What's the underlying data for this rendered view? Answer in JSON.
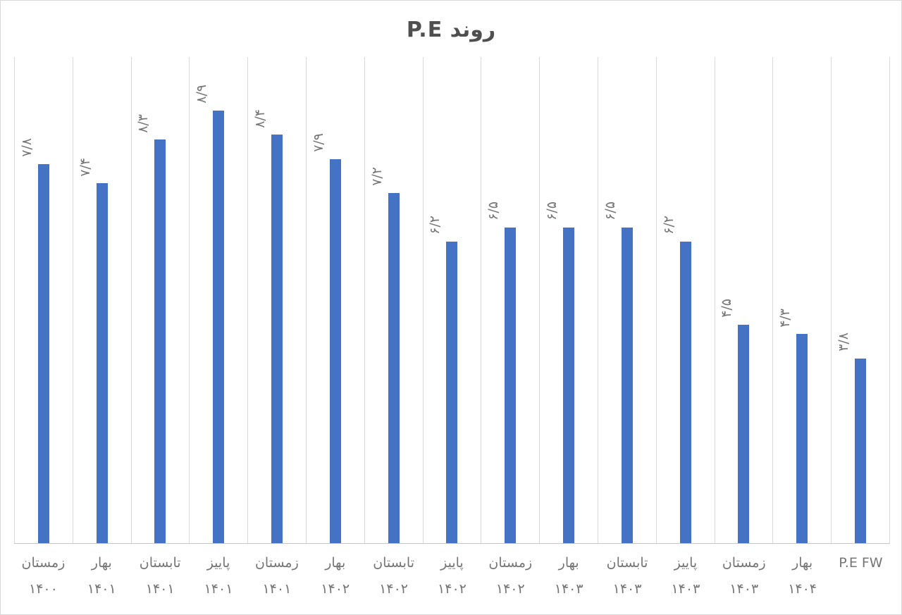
{
  "colors": {
    "bar": "#4472C4",
    "gridline": "#d9d9d9",
    "axis_line": "#c6c6c6",
    "data_label": "#767676",
    "axis_label": "#757575",
    "title": "#4f4f4f"
  },
  "chart_data": {
    "type": "bar",
    "title": "روند P.E",
    "xlabel": "",
    "ylabel": "",
    "ylim": [
      0,
      10
    ],
    "grid": "vertical-only",
    "legend": "none",
    "bar_color": "#4472C4",
    "categories": [
      "زمستان ۱۴۰۰",
      "بهار ۱۴۰۱",
      "تابستان ۱۴۰۱",
      "پاییز ۱۴۰۱",
      "زمستان ۱۴۰۱",
      "بهار ۱۴۰۲",
      "تابستان ۱۴۰۲",
      "پاییز ۱۴۰۲",
      "زمستان ۱۴۰۲",
      "بهار ۱۴۰۳",
      "تابستان ۱۴۰۳",
      "پاییز ۱۴۰۳",
      "زمستان ۱۴۰۳",
      "بهار ۱۴۰۴",
      "P.E FW"
    ],
    "category_lines": [
      {
        "line1": "زمستان",
        "line2": "۱۴۰۰"
      },
      {
        "line1": "بهار",
        "line2": "۱۴۰۱"
      },
      {
        "line1": "تابستان",
        "line2": "۱۴۰۱"
      },
      {
        "line1": "پاییز",
        "line2": "۱۴۰۱"
      },
      {
        "line1": "زمستان",
        "line2": "۱۴۰۱"
      },
      {
        "line1": "بهار",
        "line2": "۱۴۰۲"
      },
      {
        "line1": "تابستان",
        "line2": "۱۴۰۲"
      },
      {
        "line1": "پاییز",
        "line2": "۱۴۰۲"
      },
      {
        "line1": "زمستان",
        "line2": "۱۴۰۲"
      },
      {
        "line1": "بهار",
        "line2": "۱۴۰۳"
      },
      {
        "line1": "تابستان",
        "line2": "۱۴۰۳"
      },
      {
        "line1": "پاییز",
        "line2": "۱۴۰۳"
      },
      {
        "line1": "زمستان",
        "line2": "۱۴۰۳"
      },
      {
        "line1": "بهار",
        "line2": "۱۴۰۴"
      },
      {
        "line1": "P.E FW",
        "line2": ""
      }
    ],
    "values": [
      7.8,
      7.4,
      8.3,
      8.9,
      8.4,
      7.9,
      7.2,
      6.2,
      6.5,
      6.5,
      6.5,
      6.2,
      4.5,
      4.3,
      3.8
    ],
    "value_labels": [
      "۷/۸",
      "۷/۴",
      "۸/۳",
      "۸/۹",
      "۸/۴",
      "۷/۹",
      "۷/۲",
      "۶/۲",
      "۶/۵",
      "۶/۵",
      "۶/۵",
      "۶/۲",
      "۴/۵",
      "۴/۳",
      "۳/۸"
    ]
  }
}
